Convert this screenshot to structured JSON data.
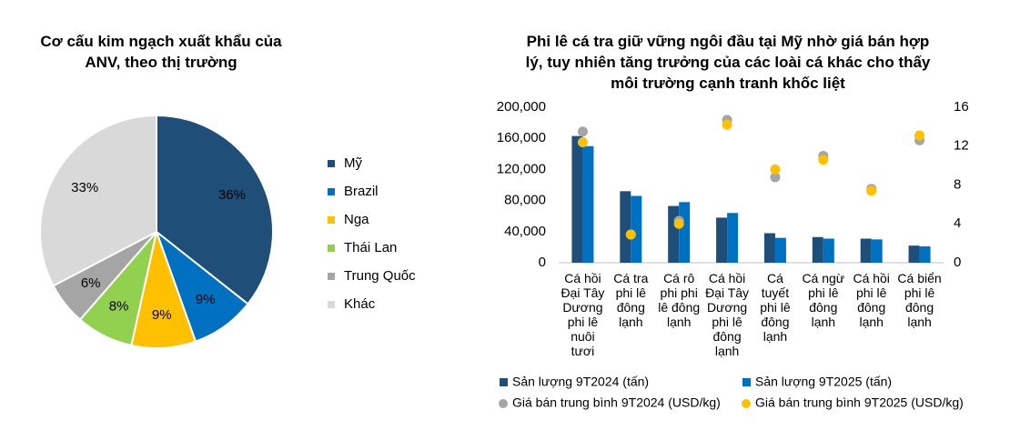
{
  "chart_data": [
    {
      "type": "pie",
      "title": "Cơ cấu kim ngạch xuất khẩu của ANV, theo thị trường",
      "categories": [
        "Mỹ",
        "Brazil",
        "Nga",
        "Thái Lan",
        "Trung Quốc",
        "Khác"
      ],
      "values": [
        36,
        9,
        9,
        8,
        6,
        33
      ],
      "value_labels": [
        "36%",
        "9%",
        "9%",
        "8%",
        "6%",
        "33%"
      ],
      "colors": [
        "#1f4e79",
        "#0070c0",
        "#ffc000",
        "#92d050",
        "#a5a5a5",
        "#d9d9d9"
      ],
      "legend": "right"
    },
    {
      "type": "bar",
      "title": "Phi lê cá tra giữ vững ngôi đầu tại Mỹ nhờ giá bán hợp lý, tuy nhiên tăng trưởng của các loài cá khác cho thấy môi trường cạnh tranh khốc liệt",
      "categories": [
        "Cá hồi Đại Tây Dương phi lê nuôi tươi",
        "Cá tra phi lê đông lạnh",
        "Cá rô phi phi lê đông lạnh",
        "Cá hồi Đại Tây Dương phi lê đông lạnh",
        "Cá tuyết phi lê đông lạnh",
        "Cá ngừ phi lê đông lạnh",
        "Cá hồi phi lê đông lạnh",
        "Cá biển phi lê đông lạnh"
      ],
      "series": [
        {
          "name": "Sản lượng 9T2024 (tấn)",
          "type": "bar",
          "color": "#1f4e79",
          "values": [
            163000,
            92000,
            73000,
            58000,
            38000,
            33000,
            31000,
            22000
          ]
        },
        {
          "name": "Sản lượng 9T2025 (tấn)",
          "type": "bar",
          "color": "#0070c0",
          "values": [
            150000,
            86000,
            78000,
            64000,
            32000,
            31000,
            30000,
            21000
          ]
        },
        {
          "name": "Giá bán trung bình 9T2024 (USD/kg)",
          "type": "scatter",
          "axis": "y2",
          "color": "#a5a5a5",
          "values": [
            13.5,
            2.9,
            4.3,
            14.7,
            8.8,
            11,
            7.6,
            12.6
          ]
        },
        {
          "name": "Giá bán trung bình 9T2025 (USD/kg)",
          "type": "scatter",
          "axis": "y2",
          "color": "#ffc000",
          "values": [
            12.4,
            2.9,
            4.0,
            14.2,
            9.6,
            10.6,
            7.4,
            13.1
          ]
        }
      ],
      "ylim": [
        0,
        200000
      ],
      "yticks": [
        0,
        {
          "value": 40000,
          "label": "40,000"
        },
        {
          "value": 80000,
          "label": "80,000"
        },
        {
          "value": 120000,
          "label": "120,000"
        },
        {
          "value": 160000,
          "label": "160,000"
        },
        {
          "value": 200000,
          "label": "200,000"
        }
      ],
      "y2lim": [
        0,
        16
      ],
      "y2ticks": [
        0,
        4,
        8,
        12,
        16
      ],
      "grid": false,
      "legend": "bottom"
    }
  ]
}
